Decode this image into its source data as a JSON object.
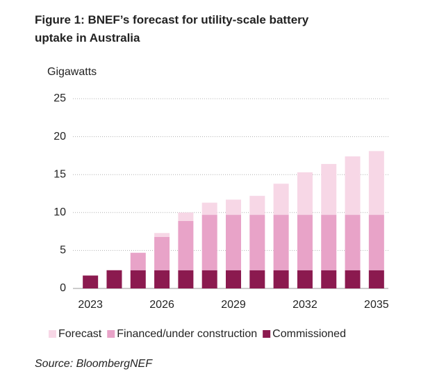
{
  "chart_data": {
    "type": "stacked_bar",
    "title": "Figure 1:   BNEF’s forecast for utility-scale battery uptake in Australia",
    "y_label": "Gigawatts",
    "source": "Source: BloombergNEF",
    "categories": [
      "2023",
      null,
      null,
      "2026",
      null,
      null,
      "2029",
      null,
      null,
      "2032",
      null,
      null,
      "2035"
    ],
    "series": [
      {
        "name": "Commissioned",
        "color": "#8b1a4f",
        "values": [
          1.7,
          2.4,
          2.4,
          2.4,
          2.4,
          2.4,
          2.4,
          2.4,
          2.4,
          2.4,
          2.4,
          2.4,
          2.4
        ]
      },
      {
        "name": "Financed/under construction",
        "color": "#e8a3c8",
        "values": [
          0,
          0,
          2.3,
          4.4,
          6.5,
          7.3,
          7.3,
          7.3,
          7.3,
          7.3,
          7.3,
          7.3,
          7.3
        ]
      },
      {
        "name": "Forecast",
        "color": "#f7d7e6",
        "values": [
          0,
          0,
          0,
          0.5,
          1.1,
          1.6,
          2.0,
          2.5,
          4.1,
          5.6,
          6.7,
          7.7,
          8.4
        ]
      }
    ],
    "legend_order": [
      2,
      1,
      0
    ],
    "ylim": [
      0,
      25
    ],
    "yticks": [
      0,
      5,
      10,
      15,
      20,
      25
    ],
    "grid": true
  }
}
